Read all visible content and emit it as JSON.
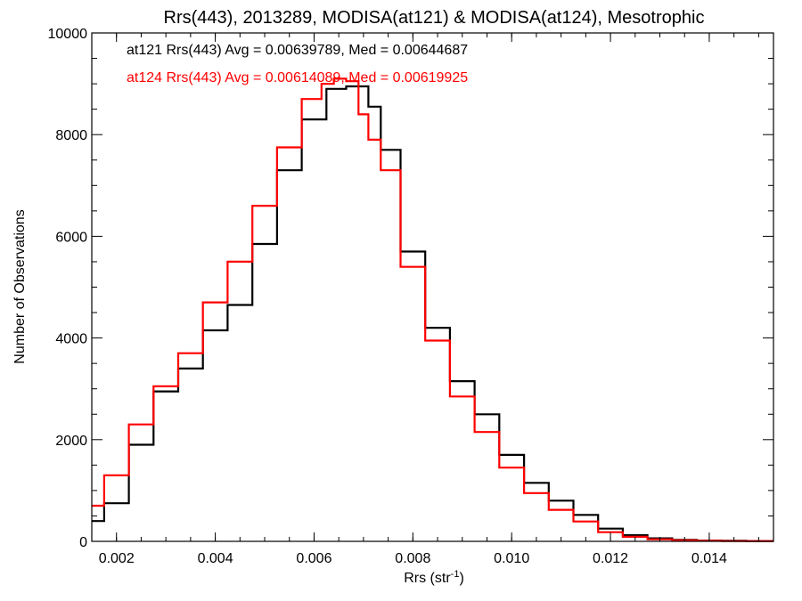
{
  "chart_data": {
    "type": "line",
    "title": "Rrs(443), 2013289, MODISA(at121) & MODISA(at124), Mesotrophic",
    "xlabel": "Rrs (str",
    "xlabel_sup": "-1",
    "xlabel_close": ")",
    "ylabel": "Number of Observations",
    "xlim": [
      0.0015,
      0.0153
    ],
    "ylim": [
      0,
      10000
    ],
    "xticks": [
      0.002,
      0.004,
      0.006,
      0.008,
      0.01,
      0.012,
      0.014
    ],
    "xtick_labels": [
      "0.002",
      "0.004",
      "0.006",
      "0.008",
      "0.010",
      "0.012",
      "0.014"
    ],
    "yticks": [
      0,
      2000,
      4000,
      6000,
      8000,
      10000
    ],
    "ytick_labels": [
      "0",
      "2000",
      "4000",
      "6000",
      "8000",
      "10000"
    ],
    "grid": false,
    "step": true,
    "series": [
      {
        "name": "at121",
        "color": "#000000",
        "x": [
          0.0015,
          0.002,
          0.0025,
          0.003,
          0.0035,
          0.004,
          0.0045,
          0.005,
          0.0055,
          0.006,
          0.0065,
          0.0068,
          0.007,
          0.0072,
          0.0075,
          0.008,
          0.0085,
          0.009,
          0.0095,
          0.01,
          0.0105,
          0.011,
          0.0115,
          0.012,
          0.0125,
          0.013,
          0.0135,
          0.014,
          0.0145,
          0.015,
          0.0153
        ],
        "y": [
          400,
          750,
          1900,
          2950,
          3400,
          4150,
          4650,
          5850,
          7300,
          8300,
          8900,
          8950,
          8950,
          8550,
          7700,
          5700,
          4200,
          3150,
          2500,
          1700,
          1150,
          800,
          520,
          250,
          120,
          60,
          30,
          15,
          10,
          5,
          5
        ]
      },
      {
        "name": "at124",
        "color": "#ff0000",
        "x": [
          0.0015,
          0.002,
          0.0025,
          0.003,
          0.0035,
          0.004,
          0.0045,
          0.005,
          0.0055,
          0.006,
          0.0063,
          0.0065,
          0.0068,
          0.007,
          0.0072,
          0.0075,
          0.008,
          0.0085,
          0.009,
          0.0095,
          0.01,
          0.0105,
          0.011,
          0.0115,
          0.012,
          0.0125,
          0.013,
          0.0135,
          0.014,
          0.0145,
          0.015,
          0.0153
        ],
        "y": [
          700,
          1300,
          2300,
          3050,
          3700,
          4700,
          5500,
          6600,
          7750,
          8700,
          9000,
          9100,
          9050,
          8400,
          7900,
          7300,
          5400,
          3950,
          2850,
          2150,
          1450,
          950,
          620,
          390,
          180,
          90,
          40,
          20,
          10,
          5,
          5,
          5
        ]
      }
    ],
    "annotations": [
      {
        "text": "at121 Rrs(443) Avg = 0.00639789, Med = 0.00644687",
        "color": "#000000"
      },
      {
        "text": "at124 Rrs(443) Avg = 0.00614089, Med = 0.00619925",
        "color": "#ff0000"
      }
    ],
    "legend": "top-left"
  }
}
